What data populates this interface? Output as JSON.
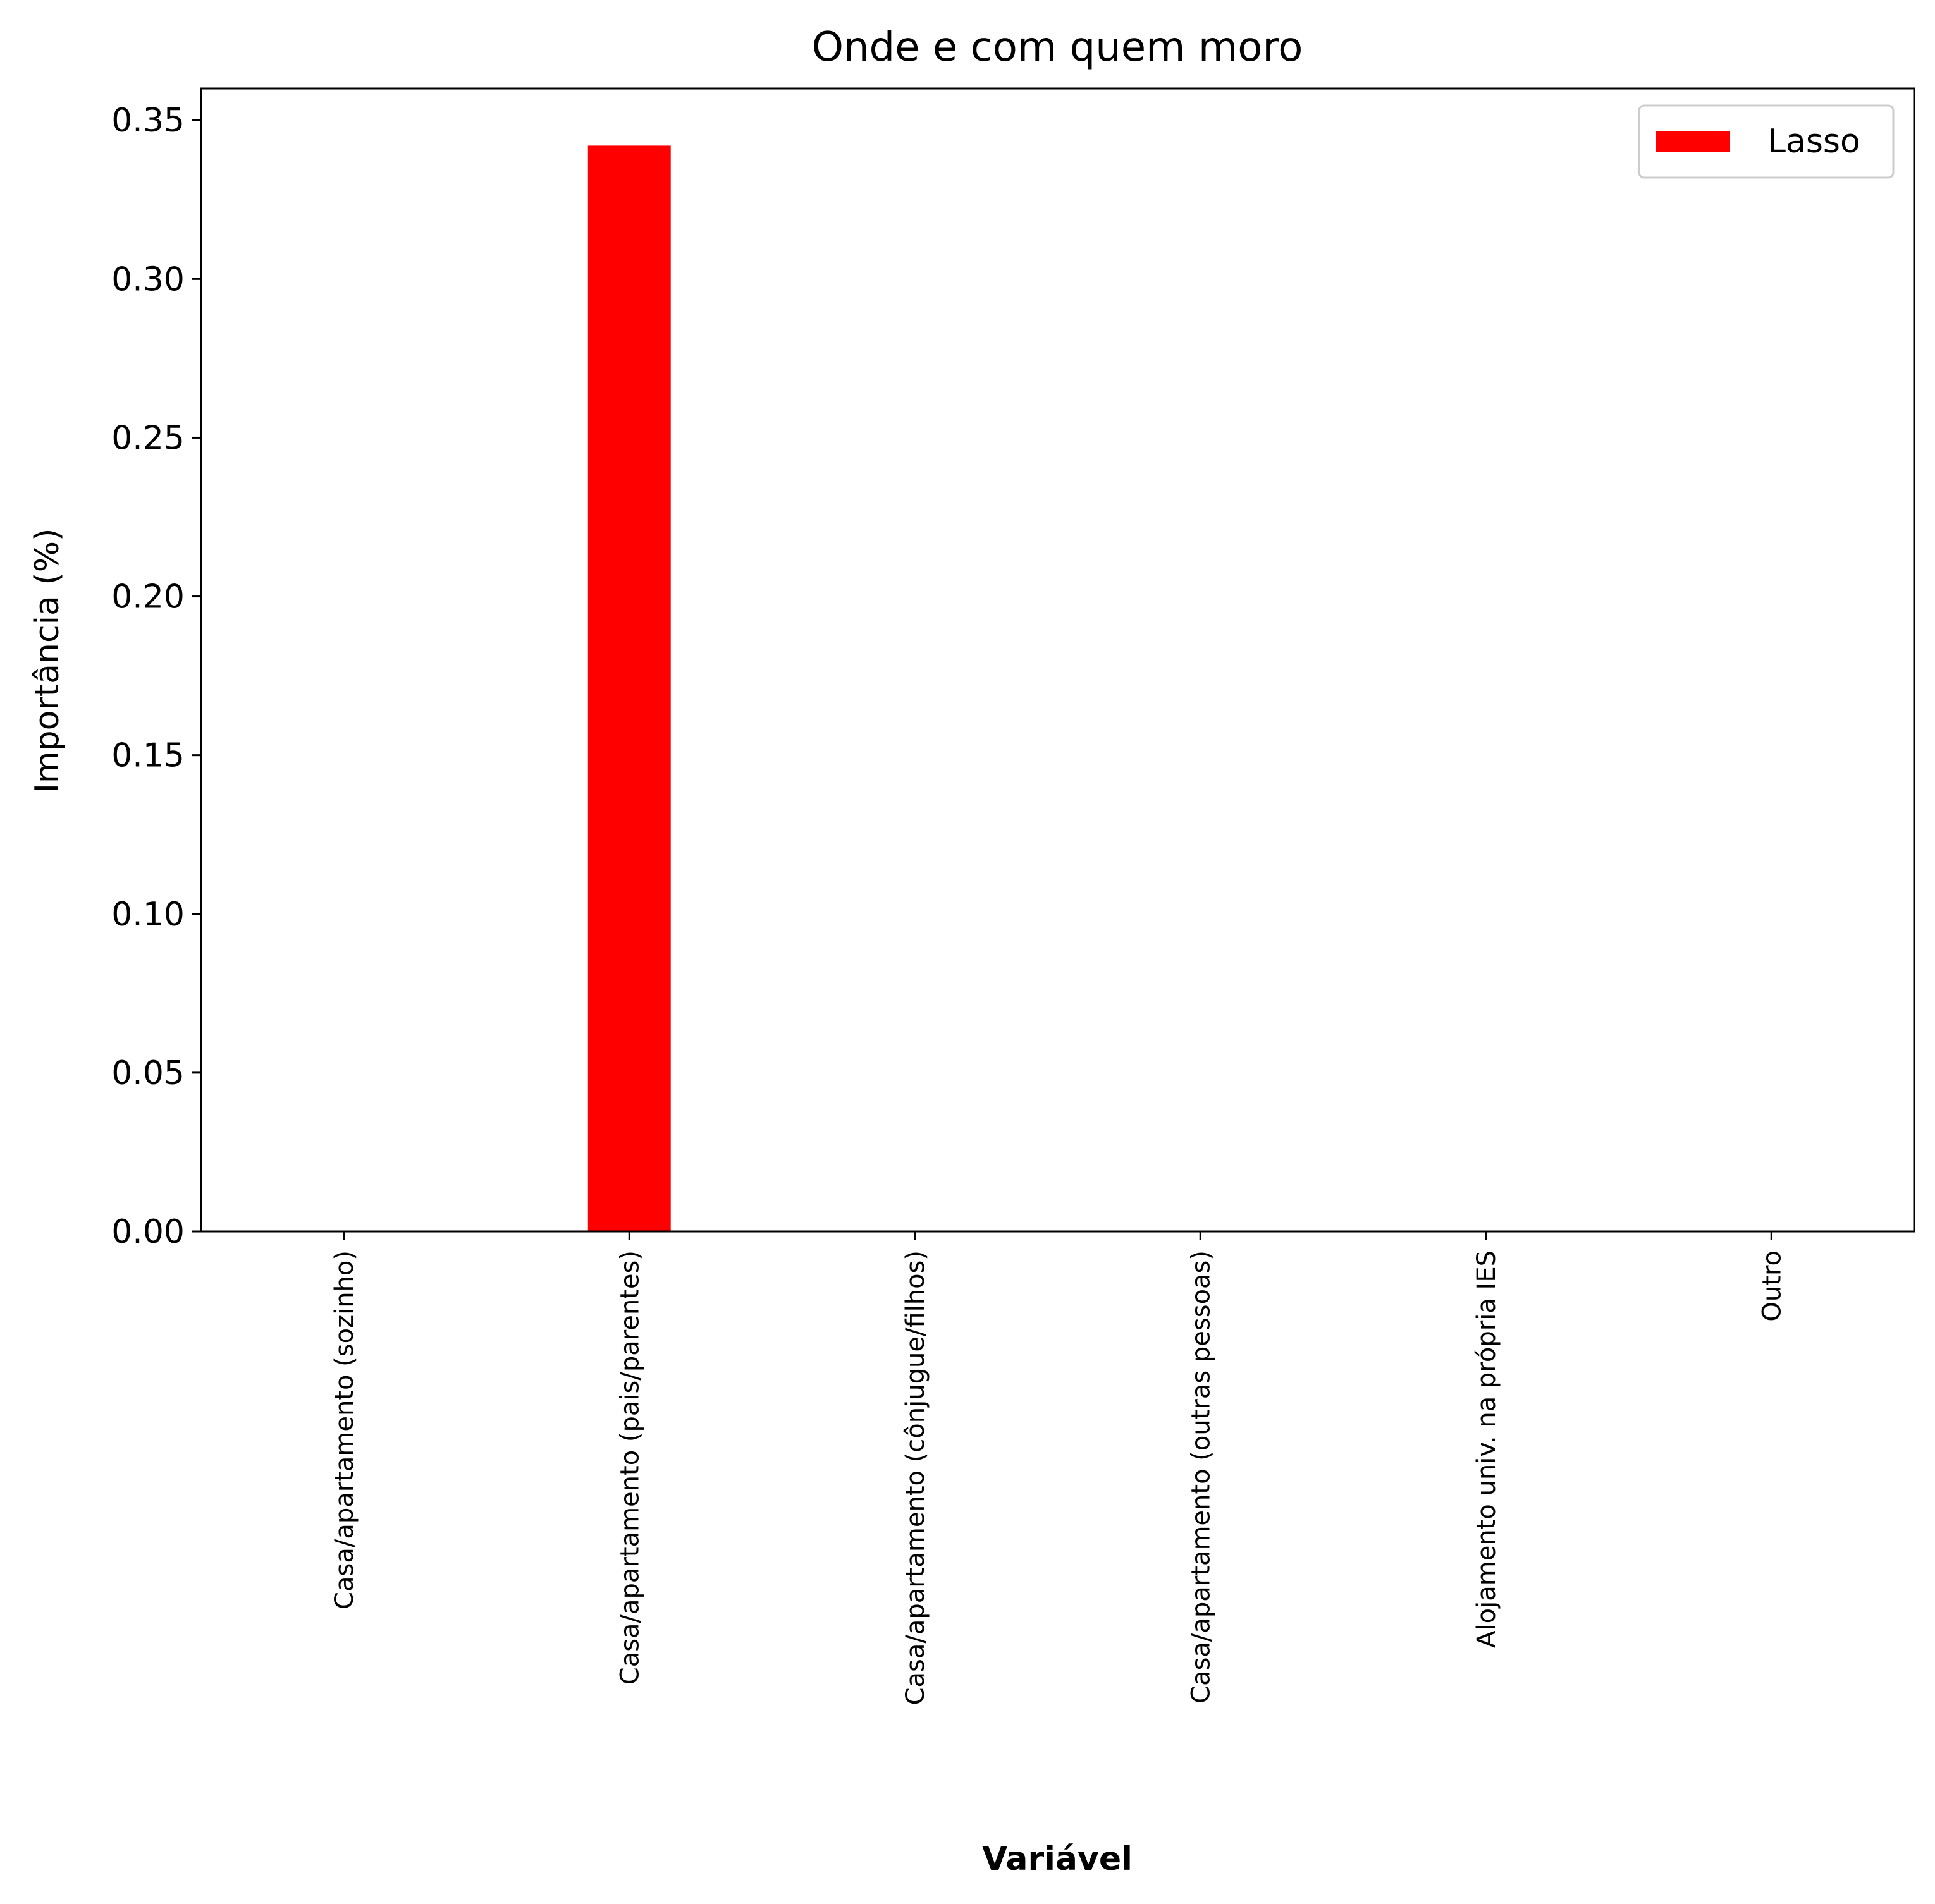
{
  "chart_data": {
    "type": "bar",
    "title": "Onde e com quem moro",
    "xlabel": "Variável",
    "ylabel": "Importância (%)",
    "categories": [
      "Casa/apartamento (sozinho)",
      "Casa/apartamento (pais/parentes)",
      "Casa/apartamento (cônjugue/filhos)",
      "Casa/apartamento (outras pessoas)",
      "Alojamento univ. na própria IES",
      "Outro"
    ],
    "series": [
      {
        "name": "Lasso",
        "color": "#ff0000",
        "values": [
          0.0,
          0.342,
          0.0,
          0.0,
          0.0,
          0.0
        ]
      }
    ],
    "ylim": [
      0,
      0.36
    ],
    "yticks": [
      0.0,
      0.05,
      0.1,
      0.15,
      0.2,
      0.25,
      0.3,
      0.35
    ],
    "ytick_labels": [
      "0.00",
      "0.05",
      "0.10",
      "0.15",
      "0.20",
      "0.25",
      "0.30",
      "0.35"
    ],
    "grid": false,
    "legend_position": "top-right"
  }
}
